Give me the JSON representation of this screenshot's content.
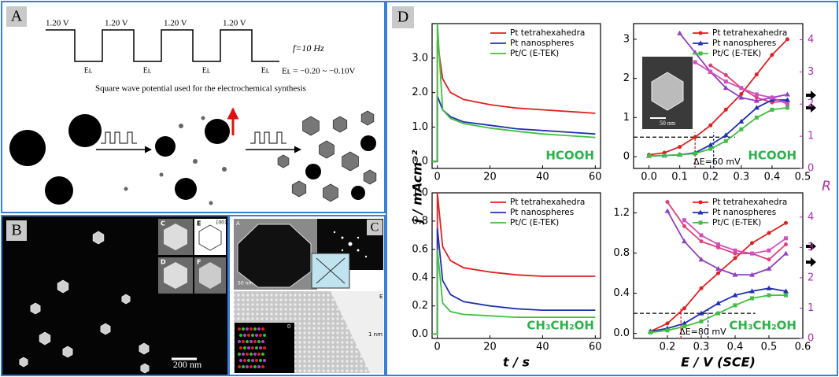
{
  "panels": {
    "a": {
      "label": "A",
      "high_labels": [
        "1.20 V",
        "1.20 V",
        "1.20 V",
        "1.20 V"
      ],
      "low_labels": [
        "Eʟ",
        "Eʟ",
        "Eʟ",
        "Eʟ"
      ],
      "frequency": "f=10 Hz",
      "range": "Eʟ = −0.20 ~ −0.10V",
      "caption": "Square wave potential used for the electrochemical synthesis"
    },
    "b": {
      "label": "B",
      "inset_labels": [
        "C",
        "D",
        "E",
        "F"
      ],
      "miller": "[001]",
      "scale": "200 nm"
    },
    "c": {
      "label": "C",
      "inset_labels": [
        "A",
        "E",
        "D"
      ],
      "scale_top": "50 nm",
      "scale_bottom": "1 nm"
    },
    "d": {
      "label": "D",
      "inset_scale": "50 nm"
    }
  },
  "chart_data": [
    {
      "type": "line",
      "ylabel": "j / mAcm⁻²",
      "annotation": "HCOOH",
      "annotation_color": "#2bb24a",
      "legend": "upper right",
      "x": [
        -2,
        0,
        0,
        2,
        5,
        10,
        20,
        30,
        40,
        50,
        60
      ],
      "xlim": [
        -2,
        62
      ],
      "xticks": [
        0,
        20,
        40,
        60
      ],
      "ylim": [
        -0.2,
        4.0
      ],
      "yticks": [
        {
          "value": 0,
          "label": "0.0"
        },
        {
          "value": 1,
          "label": "1.0"
        },
        {
          "value": 2,
          "label": "2.0"
        },
        {
          "value": 3,
          "label": "3.0"
        }
      ],
      "series": [
        {
          "name": "Pt tetrahexahedra",
          "color": "#e02020",
          "values": [
            0,
            0,
            3.5,
            2.4,
            2.0,
            1.8,
            1.65,
            1.55,
            1.5,
            1.45,
            1.4
          ]
        },
        {
          "name": "Pt nanospheres",
          "color": "#2030b0",
          "values": [
            0,
            0,
            1.9,
            1.5,
            1.3,
            1.15,
            1.05,
            0.95,
            0.9,
            0.85,
            0.8
          ]
        },
        {
          "name": "Pt/C (E-TEK)",
          "color": "#40c040",
          "values": [
            0,
            0,
            4.0,
            1.5,
            1.25,
            1.1,
            0.97,
            0.88,
            0.8,
            0.75,
            0.7
          ]
        }
      ]
    },
    {
      "type": "line",
      "y2label": "R",
      "y2color": "#b030b0",
      "annotation": "HCOOH",
      "annotation_color": "#2bb24a",
      "legend": "upper right",
      "x": [
        0.0,
        0.05,
        0.1,
        0.15,
        0.2,
        0.25,
        0.3,
        0.35,
        0.4,
        0.45
      ],
      "xlim": [
        -0.05,
        0.5
      ],
      "xticks": [
        {
          "value": 0,
          "label": "0.0"
        },
        0.1,
        0.2,
        0.3,
        0.4,
        0.5
      ],
      "ylim": [
        -0.3,
        3.4
      ],
      "yticks": [
        0,
        1,
        2,
        3
      ],
      "y2lim": [
        0,
        4.5
      ],
      "y2ticks": [
        0,
        1,
        2,
        3,
        4
      ],
      "guides": {
        "y": 0.5,
        "x_end": 0.28,
        "verticals": [
          {
            "x": 0.15,
            "color": "#e02020"
          },
          {
            "x": 0.21,
            "color": "#2030b0"
          }
        ],
        "label": "ΔE=60 mV"
      },
      "series": [
        {
          "name": "Pt tetrahexahedra",
          "color": "#e02020",
          "marker": "circle",
          "values": [
            0.05,
            0.1,
            0.25,
            0.5,
            0.8,
            1.2,
            1.6,
            2.1,
            2.6,
            3.0
          ],
          "r_color": "#e0407a",
          "r_values": [
            null,
            null,
            null,
            null,
            3.2,
            2.9,
            2.5,
            2.2,
            2.05,
            2.1
          ]
        },
        {
          "name": "Pt nanospheres",
          "color": "#2030b0",
          "marker": "triangle",
          "values": [
            0.02,
            0.03,
            0.05,
            0.1,
            0.3,
            0.55,
            0.9,
            1.25,
            1.45,
            1.45
          ],
          "r_color": "#9040c0",
          "r_values": [
            null,
            null,
            4.2,
            3.6,
            3.0,
            2.5,
            2.2,
            2.1,
            2.2,
            2.3
          ]
        },
        {
          "name": "Pt/C (E-TEK)",
          "color": "#40c040",
          "marker": "square",
          "values": [
            0.02,
            0.03,
            0.05,
            0.08,
            0.2,
            0.4,
            0.7,
            1.0,
            1.2,
            1.25
          ],
          "r_color": "#d050c0",
          "r_values": [
            null,
            null,
            null,
            3.3,
            3.0,
            2.7,
            2.5,
            2.3,
            2.2,
            2.0
          ]
        }
      ]
    },
    {
      "type": "line",
      "xlabel": "t / s",
      "annotation": "CH₃CH₂OH",
      "annotation_color": "#2bb24a",
      "legend": "upper right",
      "x": [
        -2,
        0,
        0,
        2,
        5,
        10,
        20,
        30,
        40,
        50,
        60
      ],
      "xlim": [
        -2,
        62
      ],
      "xticks": [
        0,
        20,
        40,
        60
      ],
      "ylim": [
        -0.03,
        1.0
      ],
      "yticks": [
        {
          "value": 0,
          "label": "0.0"
        },
        0.2,
        0.4,
        0.6,
        0.8,
        {
          "value": 1,
          "label": "1.0"
        }
      ],
      "series": [
        {
          "name": "Pt tetrahexahedra",
          "color": "#e02020",
          "values": [
            0,
            0,
            1.0,
            0.62,
            0.52,
            0.47,
            0.44,
            0.42,
            0.41,
            0.41,
            0.41
          ]
        },
        {
          "name": "Pt nanospheres",
          "color": "#2030b0",
          "values": [
            0,
            0,
            0.75,
            0.38,
            0.28,
            0.23,
            0.2,
            0.18,
            0.17,
            0.17,
            0.17
          ]
        },
        {
          "name": "Pt/C (E-TEK)",
          "color": "#40c040",
          "values": [
            0,
            0,
            0.6,
            0.22,
            0.16,
            0.14,
            0.13,
            0.12,
            0.12,
            0.12,
            0.12
          ]
        }
      ]
    },
    {
      "type": "line",
      "xlabel": "E / V (SCE)",
      "y2color": "#b030b0",
      "annotation": "CH₃CH₂OH",
      "annotation_color": "#2bb24a",
      "legend": "upper right",
      "x": [
        0.15,
        0.2,
        0.25,
        0.3,
        0.35,
        0.4,
        0.45,
        0.5,
        0.55
      ],
      "xlim": [
        0.1,
        0.6
      ],
      "xticks": [
        0.2,
        0.3,
        0.4,
        0.5,
        0.6
      ],
      "ylim": [
        -0.05,
        1.4
      ],
      "yticks": [
        {
          "value": 0,
          "label": "0.0"
        },
        0.4,
        0.8,
        1.2
      ],
      "y2lim": [
        0,
        4.8
      ],
      "y2ticks": [
        0,
        1,
        2,
        3,
        4
      ],
      "guides": {
        "y": 0.2,
        "x_end": 0.46,
        "verticals": [
          {
            "x": 0.24,
            "color": "#e02020"
          },
          {
            "x": 0.32,
            "color": "#2030b0"
          }
        ],
        "label": "ΔE=80 mV"
      },
      "series": [
        {
          "name": "Pt tetrahexahedra",
          "color": "#e02020",
          "marker": "circle",
          "values": [
            0.02,
            0.1,
            0.25,
            0.45,
            0.6,
            0.75,
            0.9,
            1.0,
            1.1
          ],
          "r_color": "#e0407a",
          "r_values": [
            null,
            4.5,
            3.7,
            3.2,
            3.0,
            2.8,
            2.8,
            2.6,
            3.1
          ]
        },
        {
          "name": "Pt nanospheres",
          "color": "#2030b0",
          "marker": "triangle",
          "values": [
            0.02,
            0.05,
            0.1,
            0.2,
            0.3,
            0.38,
            0.42,
            0.45,
            0.42
          ],
          "r_color": "#9040c0",
          "r_values": [
            null,
            4.2,
            3.2,
            2.6,
            2.3,
            2.1,
            2.1,
            2.3,
            2.8
          ]
        },
        {
          "name": "Pt/C (E-TEK)",
          "color": "#40c040",
          "marker": "square",
          "values": [
            0.01,
            0.03,
            0.07,
            0.12,
            0.2,
            0.28,
            0.35,
            0.38,
            0.38
          ],
          "r_color": "#d050c0",
          "r_values": [
            null,
            null,
            3.9,
            3.4,
            3.1,
            2.9,
            2.8,
            2.9,
            3.3
          ]
        }
      ]
    }
  ]
}
